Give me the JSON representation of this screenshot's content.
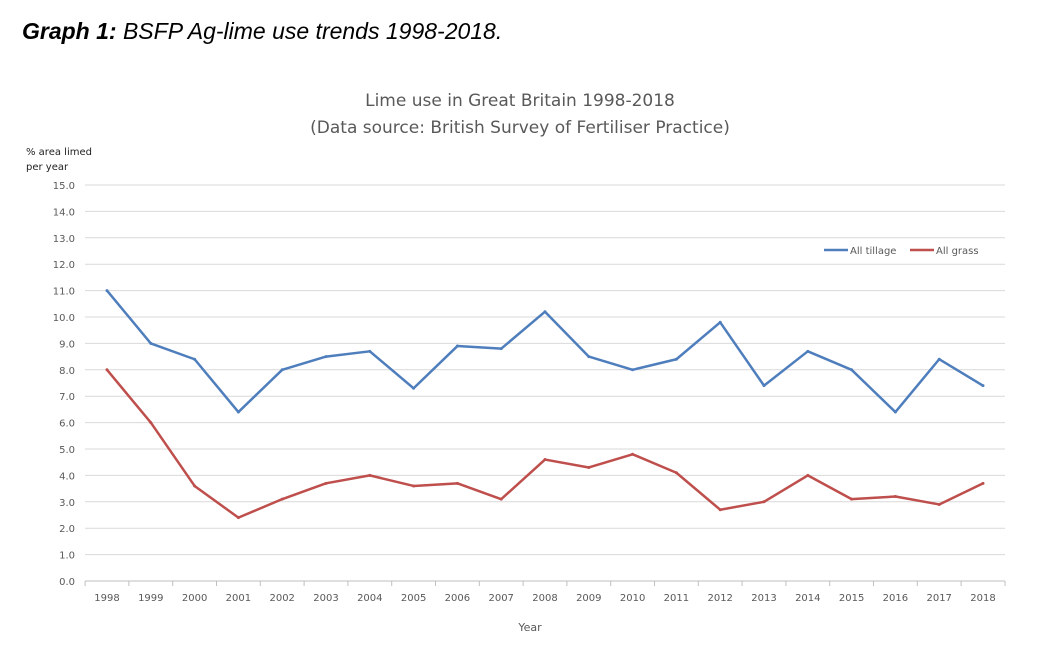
{
  "caption": {
    "bold": "Graph 1:",
    "text": " BSFP Ag-lime use trends 1998-2018."
  },
  "chart_data": {
    "type": "line",
    "title": "Lime use in Great Britain 1998-2018",
    "subtitle": "(Data source: British Survey of Fertiliser Practice)",
    "ylabel_line1": "% area limed",
    "ylabel_line2": "per year",
    "xlabel": "Year",
    "ylim": [
      0,
      15
    ],
    "yticks": [
      "0.0",
      "1.0",
      "2.0",
      "3.0",
      "4.0",
      "5.0",
      "6.0",
      "7.0",
      "8.0",
      "9.0",
      "10.0",
      "11.0",
      "12.0",
      "13.0",
      "14.0",
      "15.0"
    ],
    "categories": [
      "1998",
      "1999",
      "2000",
      "2001",
      "2002",
      "2003",
      "2004",
      "2005",
      "2006",
      "2007",
      "2008",
      "2009",
      "2010",
      "2011",
      "2012",
      "2013",
      "2014",
      "2015",
      "2016",
      "2017",
      "2018"
    ],
    "legend_position": "top-right",
    "grid": true,
    "series": [
      {
        "name": "All tillage",
        "color": "#4f7ebd",
        "values": [
          11.0,
          9.0,
          8.4,
          6.4,
          8.0,
          8.5,
          8.7,
          7.3,
          8.9,
          8.8,
          10.2,
          8.5,
          8.0,
          8.4,
          9.8,
          7.4,
          8.7,
          8.0,
          6.4,
          8.4,
          7.4
        ]
      },
      {
        "name": "All grass",
        "color": "#be4f4c",
        "values": [
          8.0,
          6.0,
          3.6,
          2.4,
          3.1,
          3.7,
          4.0,
          3.6,
          3.7,
          3.1,
          4.6,
          4.3,
          4.8,
          4.1,
          2.7,
          3.0,
          4.0,
          3.1,
          3.2,
          2.9,
          3.7
        ]
      }
    ]
  }
}
